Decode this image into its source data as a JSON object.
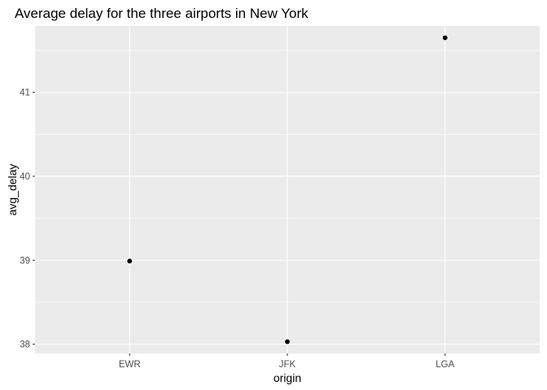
{
  "chart_data": {
    "type": "scatter",
    "title": "Average delay for the three airports in New York",
    "xlabel": "origin",
    "ylabel": "avg_delay",
    "categories": [
      "EWR",
      "JFK",
      "LGA"
    ],
    "series": [
      {
        "values": [
          38.99,
          38.03,
          41.65
        ]
      }
    ],
    "ylim": [
      37.89,
      41.79
    ],
    "yticks": [
      38,
      39,
      40,
      41
    ],
    "ytick_labels": [
      "38",
      "39",
      "40",
      "41"
    ],
    "grid": true,
    "legend": "none",
    "colors": {
      "panel_background": "#ebebeb",
      "grid_major": "#ffffff",
      "grid_minor": "#f5f5f5",
      "point": "#000000",
      "tick_label": "#4d4d4d"
    }
  }
}
